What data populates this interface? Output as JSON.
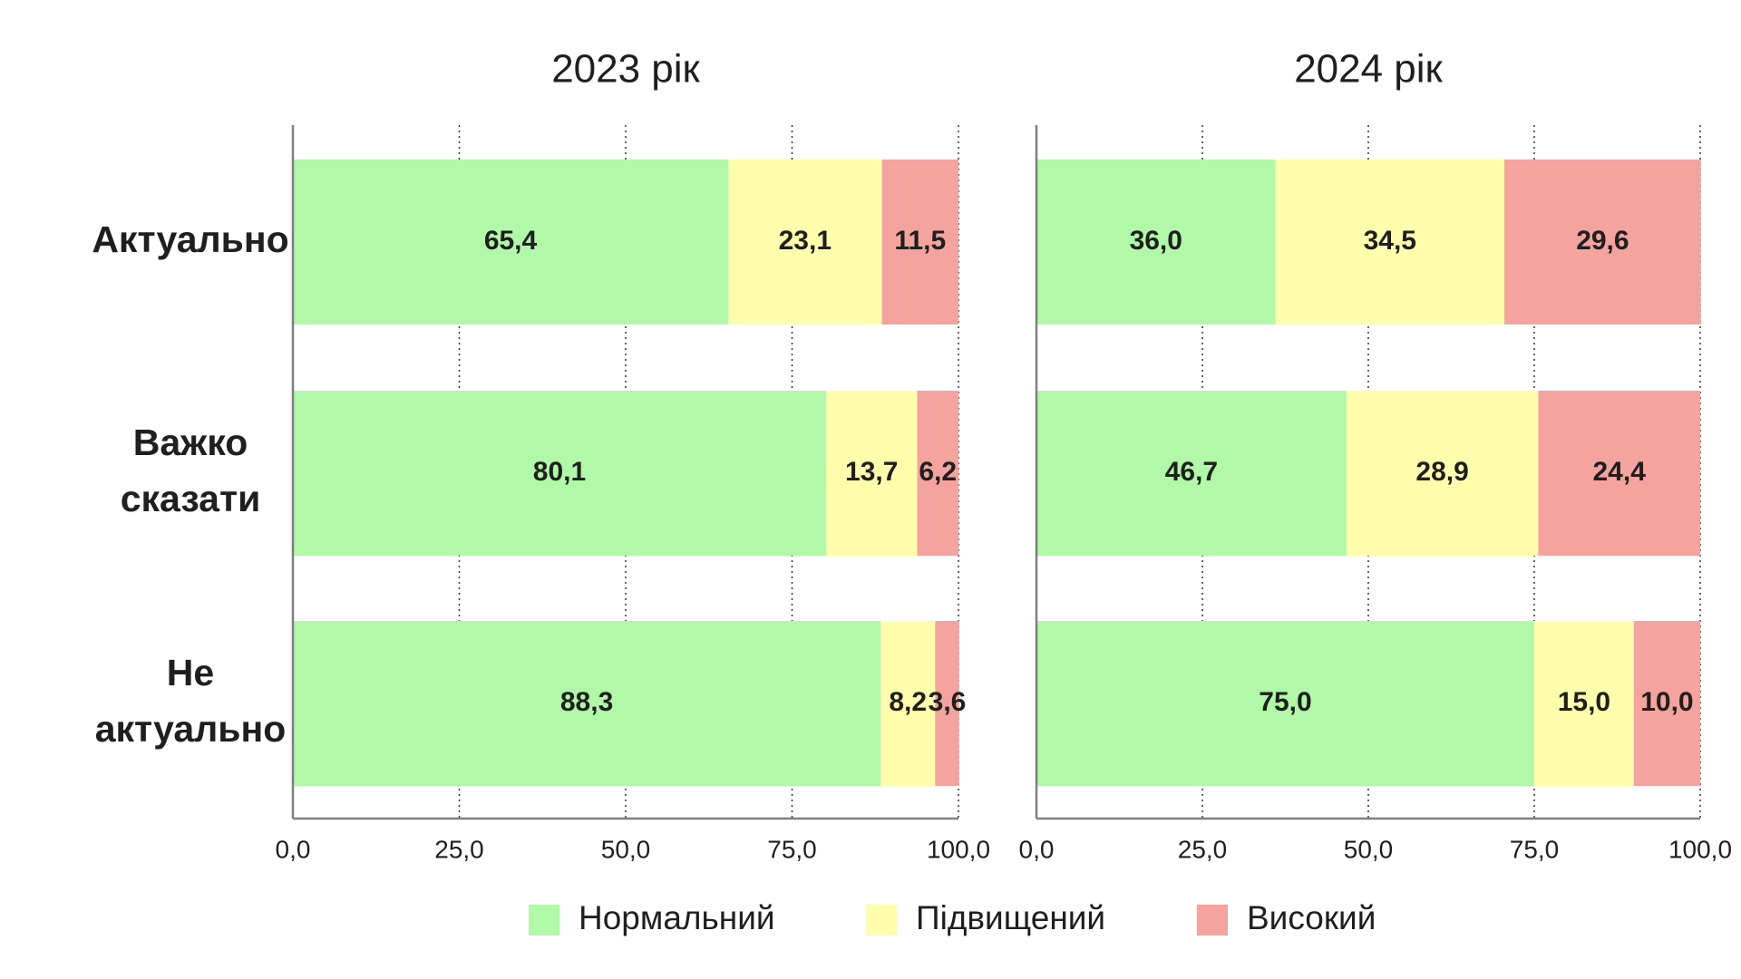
{
  "chart_data": {
    "type": "bar",
    "orientation": "horizontal",
    "stacked": true,
    "categories": [
      [
        "Актуально"
      ],
      [
        "Важко",
        "сказати"
      ],
      [
        "Не",
        "актуально"
      ]
    ],
    "series_names": [
      "Нормальний",
      "Підвищений",
      "Високий"
    ],
    "colors": [
      "#b1f8a8",
      "#fefeac",
      "#f4a39e"
    ],
    "xlim": [
      0,
      100
    ],
    "ticks": [
      0,
      25,
      50,
      75,
      100
    ],
    "tick_labels": [
      "0,0",
      "25,0",
      "50,0",
      "75,0",
      "100,0"
    ],
    "grid": "vertical-dotted",
    "legend": "bottom-center",
    "panels": [
      {
        "title": "2023 рік",
        "rows": [
          {
            "values": [
              65.4,
              23.1,
              11.5
            ],
            "labels": [
              "65,4",
              "23,1",
              "11,5"
            ]
          },
          {
            "values": [
              80.1,
              13.7,
              6.2
            ],
            "labels": [
              "80,1",
              "13,7",
              "6,2"
            ]
          },
          {
            "values": [
              88.3,
              8.2,
              3.6
            ],
            "labels": [
              "88,3",
              "8,2",
              "3,6"
            ]
          }
        ]
      },
      {
        "title": "2024 рік",
        "rows": [
          {
            "values": [
              36.0,
              34.5,
              29.6
            ],
            "labels": [
              "36,0",
              "34,5",
              "29,6"
            ]
          },
          {
            "values": [
              46.7,
              28.9,
              24.4
            ],
            "labels": [
              "46,7",
              "28,9",
              "24,4"
            ]
          },
          {
            "values": [
              75.0,
              15.0,
              10.0
            ],
            "labels": [
              "75,0",
              "15,0",
              "10,0"
            ]
          }
        ]
      }
    ]
  }
}
